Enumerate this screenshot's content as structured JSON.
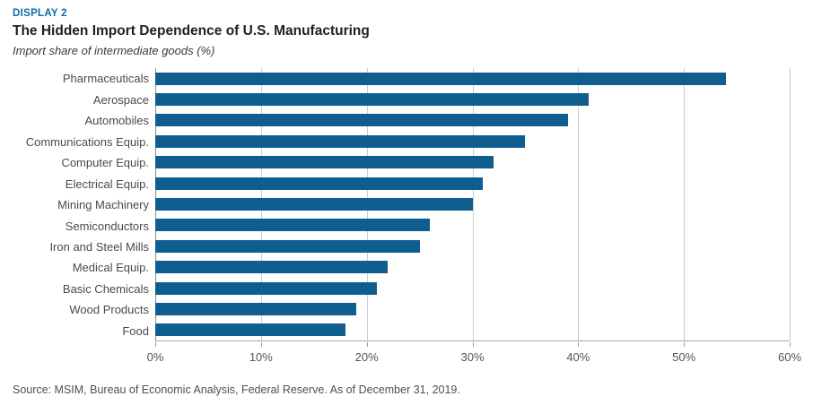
{
  "header": {
    "display_label": "DISPLAY 2",
    "title": "The Hidden Import Dependence of U.S. Manufacturing",
    "subtitle": "Import share of intermediate goods (%)"
  },
  "chart_data": {
    "type": "bar",
    "orientation": "horizontal",
    "title": "The Hidden Import Dependence of U.S. Manufacturing",
    "xlabel": "Import share of intermediate goods (%)",
    "ylabel": "",
    "categories": [
      "Pharmaceuticals",
      "Aerospace",
      "Automobiles",
      "Communications Equip.",
      "Computer Equip.",
      "Electrical Equip.",
      "Mining Machinery",
      "Semiconductors",
      "Iron and Steel Mills",
      "Medical Equip.",
      "Basic Chemicals",
      "Wood Products",
      "Food"
    ],
    "values": [
      54,
      41,
      39,
      35,
      32,
      31,
      30,
      26,
      25,
      22,
      21,
      19,
      18
    ],
    "xlim": [
      0,
      60
    ],
    "x_ticks": [
      {
        "value": 0,
        "label": "0%"
      },
      {
        "value": 10,
        "label": "10%"
      },
      {
        "value": 20,
        "label": "20%"
      },
      {
        "value": 30,
        "label": "30%"
      },
      {
        "value": 40,
        "label": "40%"
      },
      {
        "value": 50,
        "label": "50%"
      },
      {
        "value": 60,
        "label": "60%"
      }
    ],
    "grid": "vertical-gridlines-on",
    "legend": "none",
    "bar_color": "#0f5e8f"
  },
  "footer": {
    "source": "Source: MSIM, Bureau of Economic Analysis, Federal Reserve. As of December 31, 2019."
  },
  "colors": {
    "accent_blue": "#0e6ba8",
    "bar_blue": "#0f5e8f",
    "gridline": "#cdcdcd",
    "zero_line": "#8e8e8e",
    "axis_line": "#a8a8a8",
    "text_dark": "#231f20",
    "text_gray": "#4f4f4f"
  }
}
